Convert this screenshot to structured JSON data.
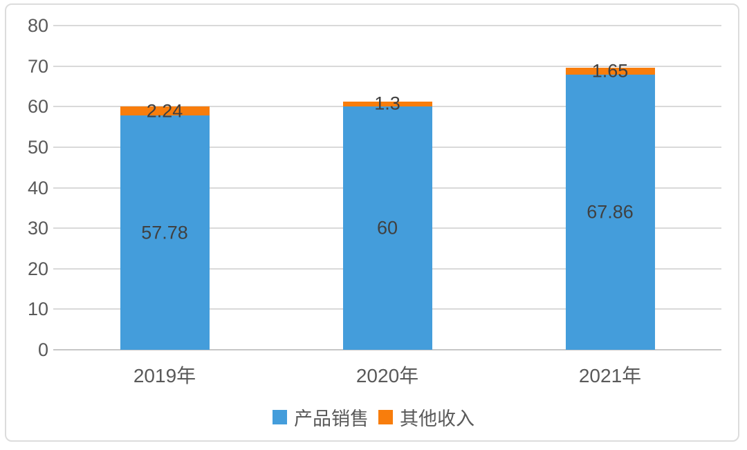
{
  "chart_data": {
    "type": "bar",
    "stacked": true,
    "title": "",
    "xlabel": "",
    "ylabel": "",
    "categories": [
      "2019年",
      "2020年",
      "2021年"
    ],
    "series": [
      {
        "name": "产品销售",
        "color": "#449DDB",
        "values": [
          57.78,
          60,
          67.86
        ],
        "labels": [
          "57.78",
          "60",
          "67.86"
        ]
      },
      {
        "name": "其他收入",
        "color": "#F87D0C",
        "values": [
          2.24,
          1.3,
          1.65
        ],
        "labels": [
          "2.24",
          "1.3",
          "1.65"
        ]
      }
    ],
    "ylim": [
      0,
      80
    ],
    "yticks": [
      "80",
      "70",
      "60",
      "50",
      "40",
      "30",
      "20",
      "10",
      "0"
    ],
    "grid": true,
    "legend_position": "bottom",
    "colors": {
      "grid": "#d9d9d9",
      "axis": "#c6c6c6",
      "tick_text": "#595959",
      "data_label_text": "#404040",
      "card_border": "#dcdcdc",
      "background": "#ffffff"
    }
  }
}
